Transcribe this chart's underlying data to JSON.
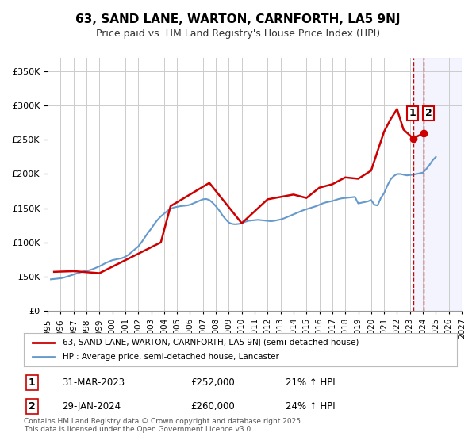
{
  "title": "63, SAND LANE, WARTON, CARNFORTH, LA5 9NJ",
  "subtitle": "Price paid vs. HM Land Registry's House Price Index (HPI)",
  "legend_label_1": "63, SAND LANE, WARTON, CARNFORTH, LA5 9NJ (semi-detached house)",
  "legend_label_2": "HPI: Average price, semi-detached house, Lancaster",
  "footer": "Contains HM Land Registry data © Crown copyright and database right 2025.\nThis data is licensed under the Open Government Licence v3.0.",
  "marker1_date": "31-MAR-2023",
  "marker1_price": "£252,000",
  "marker1_hpi": "21% ↑ HPI",
  "marker1_label": "1",
  "marker2_date": "29-JAN-2024",
  "marker2_price": "£260,000",
  "marker2_hpi": "24% ↑ HPI",
  "marker2_label": "2",
  "marker1_x": 2023.25,
  "marker2_x": 2024.08,
  "color_price": "#cc0000",
  "color_hpi": "#6699cc",
  "color_vline": "#cc0000",
  "color_shade": "#f0f0ff",
  "ylim": [
    0,
    370000
  ],
  "xlim": [
    1995,
    2027
  ],
  "background_color": "#ffffff",
  "grid_color": "#cccccc",
  "hpi_data": {
    "years": [
      1995.25,
      1995.5,
      1995.75,
      1996.0,
      1996.25,
      1996.5,
      1996.75,
      1997.0,
      1997.25,
      1997.5,
      1997.75,
      1998.0,
      1998.25,
      1998.5,
      1998.75,
      1999.0,
      1999.25,
      1999.5,
      1999.75,
      2000.0,
      2000.25,
      2000.5,
      2000.75,
      2001.0,
      2001.25,
      2001.5,
      2001.75,
      2002.0,
      2002.25,
      2002.5,
      2002.75,
      2003.0,
      2003.25,
      2003.5,
      2003.75,
      2004.0,
      2004.25,
      2004.5,
      2004.75,
      2005.0,
      2005.25,
      2005.5,
      2005.75,
      2006.0,
      2006.25,
      2006.5,
      2006.75,
      2007.0,
      2007.25,
      2007.5,
      2007.75,
      2008.0,
      2008.25,
      2008.5,
      2008.75,
      2009.0,
      2009.25,
      2009.5,
      2009.75,
      2010.0,
      2010.25,
      2010.5,
      2010.75,
      2011.0,
      2011.25,
      2011.5,
      2011.75,
      2012.0,
      2012.25,
      2012.5,
      2012.75,
      2013.0,
      2013.25,
      2013.5,
      2013.75,
      2014.0,
      2014.25,
      2014.5,
      2014.75,
      2015.0,
      2015.25,
      2015.5,
      2015.75,
      2016.0,
      2016.25,
      2016.5,
      2016.75,
      2017.0,
      2017.25,
      2017.5,
      2017.75,
      2018.0,
      2018.25,
      2018.5,
      2018.75,
      2019.0,
      2019.25,
      2019.5,
      2019.75,
      2020.0,
      2020.25,
      2020.5,
      2020.75,
      2021.0,
      2021.25,
      2021.5,
      2021.75,
      2022.0,
      2022.25,
      2022.5,
      2022.75,
      2023.0,
      2023.25,
      2023.5,
      2023.75,
      2024.0,
      2024.25,
      2024.5,
      2024.75,
      2025.0
    ],
    "values": [
      46000,
      46500,
      47000,
      47500,
      48500,
      50000,
      51500,
      53000,
      54500,
      56000,
      57500,
      58500,
      59500,
      61000,
      63000,
      65000,
      67500,
      70000,
      72000,
      74000,
      75000,
      76000,
      77000,
      79000,
      82000,
      86000,
      90000,
      94000,
      100000,
      107000,
      114000,
      120000,
      127000,
      133000,
      138000,
      142000,
      146000,
      149000,
      151000,
      152000,
      153000,
      153500,
      154000,
      155000,
      157000,
      159000,
      161000,
      163000,
      163500,
      162000,
      158000,
      153000,
      147000,
      140000,
      134000,
      129000,
      127000,
      126500,
      127000,
      128000,
      130000,
      131500,
      132000,
      132500,
      133000,
      132500,
      132000,
      131500,
      131000,
      131500,
      132500,
      133500,
      135000,
      137000,
      139000,
      141000,
      143000,
      145000,
      147000,
      148500,
      150000,
      151500,
      153000,
      155000,
      157000,
      158500,
      159500,
      160500,
      162000,
      163500,
      164500,
      165000,
      165500,
      166000,
      166500,
      157000,
      158000,
      159000,
      160000,
      162000,
      155000,
      154000,
      165000,
      172000,
      183000,
      192000,
      197000,
      200000,
      200000,
      199000,
      198000,
      198500,
      199000,
      200000,
      201000,
      202000,
      207000,
      213000,
      220000,
      225000
    ]
  },
  "price_data": {
    "years": [
      1995.5,
      1997.0,
      1999.0,
      2003.75,
      2004.5,
      2007.5,
      2010.0,
      2012.0,
      2014.0,
      2015.0,
      2016.0,
      2017.0,
      2018.0,
      2019.0,
      2020.0,
      2021.0,
      2021.5,
      2022.0,
      2022.5,
      2023.25,
      2024.08
    ],
    "values": [
      57000,
      58000,
      55000,
      100000,
      153000,
      187000,
      128000,
      163000,
      170000,
      165000,
      180000,
      185000,
      195000,
      193000,
      205000,
      262000,
      280000,
      295000,
      265000,
      252000,
      260000
    ]
  }
}
